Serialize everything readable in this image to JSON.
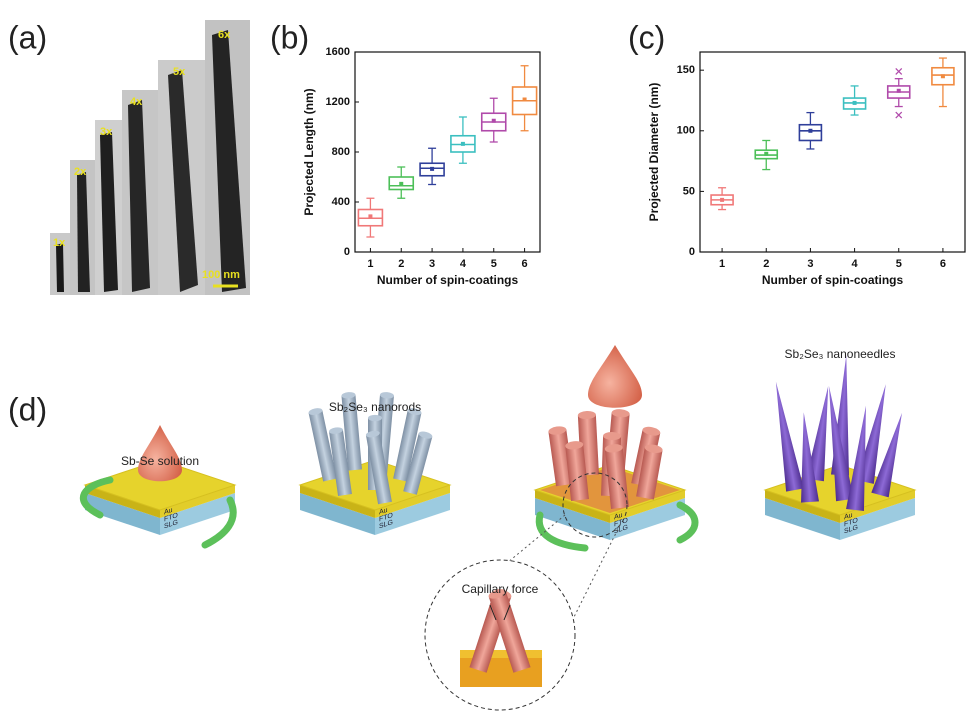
{
  "panel_labels": [
    "(a)",
    "(b)",
    "(c)",
    "(d)"
  ],
  "micrograph": {
    "labels": [
      "1x",
      "2x",
      "3x",
      "4x",
      "5x",
      "6x"
    ],
    "scale_bar": "100 nm"
  },
  "chart_data": [
    {
      "type": "box",
      "ylabel": "Projected Length (nm)",
      "xlabel": "Number of spin-coatings",
      "categories": [
        1,
        2,
        3,
        4,
        5,
        6
      ],
      "ylim": [
        0,
        1600
      ],
      "yticks": [
        0,
        400,
        800,
        1200,
        1600
      ],
      "boxes": [
        {
          "min": 120,
          "q1": 210,
          "median": 270,
          "q3": 340,
          "max": 430,
          "mean": 285,
          "color": "#f07878"
        },
        {
          "min": 430,
          "q1": 500,
          "median": 530,
          "q3": 600,
          "max": 680,
          "mean": 545,
          "color": "#4cbf58"
        },
        {
          "min": 540,
          "q1": 610,
          "median": 670,
          "q3": 710,
          "max": 830,
          "mean": 665,
          "color": "#2f3f9a"
        },
        {
          "min": 710,
          "q1": 800,
          "median": 860,
          "q3": 930,
          "max": 1080,
          "mean": 865,
          "color": "#3bbfc0"
        },
        {
          "min": 880,
          "q1": 970,
          "median": 1040,
          "q3": 1110,
          "max": 1230,
          "mean": 1050,
          "color": "#b04aaa"
        },
        {
          "min": 970,
          "q1": 1100,
          "median": 1210,
          "q3": 1320,
          "max": 1490,
          "mean": 1220,
          "color": "#f08a40"
        }
      ]
    },
    {
      "type": "box",
      "ylabel": "Projected Diameter (nm)",
      "xlabel": "Number of spin-coatings",
      "categories": [
        1,
        2,
        3,
        4,
        5,
        6
      ],
      "ylim": [
        0,
        165
      ],
      "yticks": [
        0,
        50,
        100,
        150
      ],
      "boxes": [
        {
          "min": 35,
          "q1": 39,
          "median": 43,
          "q3": 47,
          "max": 53,
          "mean": 43,
          "color": "#f07878"
        },
        {
          "min": 68,
          "q1": 77,
          "median": 80,
          "q3": 84,
          "max": 92,
          "mean": 81,
          "color": "#4cbf58"
        },
        {
          "min": 85,
          "q1": 92,
          "median": 100,
          "q3": 105,
          "max": 115,
          "mean": 100,
          "color": "#2f3f9a"
        },
        {
          "min": 113,
          "q1": 118,
          "median": 123,
          "q3": 127,
          "max": 137,
          "mean": 123,
          "color": "#3bbfc0"
        },
        {
          "min": 120,
          "q1": 127,
          "median": 132,
          "q3": 137,
          "max": 143,
          "mean": 133,
          "color": "#b04aaa",
          "outliers": [
            149,
            113
          ]
        },
        {
          "min": 120,
          "q1": 138,
          "median": 146,
          "q3": 152,
          "max": 160,
          "mean": 145,
          "color": "#f08a40"
        }
      ]
    }
  ],
  "schematic": {
    "solution_label": "Sb-Se solution",
    "nanorods_label": "Sb₂Se₃ nanorods",
    "nanoneedles_label": "Sb₂Se₃ nanoneedles",
    "capillary_label": "Capillary force",
    "layers": [
      "Au",
      "FTO",
      "SLG"
    ]
  }
}
